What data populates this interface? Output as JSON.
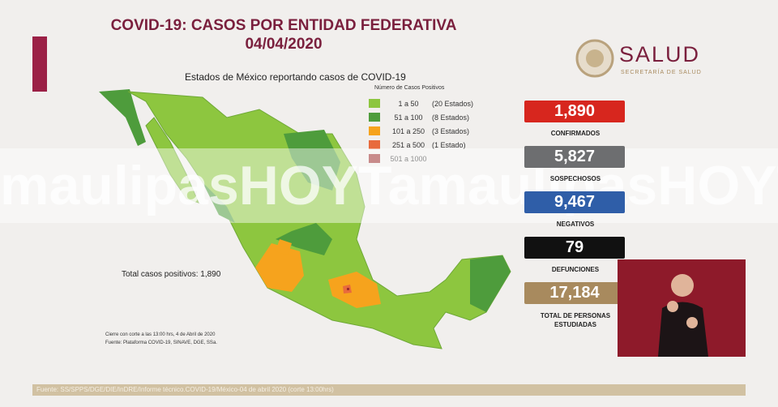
{
  "header": {
    "title": "COVID-19: CASOS POR ENTIDAD FEDERATIVA",
    "date": "04/04/2020"
  },
  "logo": {
    "name": "SALUD",
    "subtitle": "SECRETARÍA DE SALUD"
  },
  "map": {
    "title": "Estados de México reportando casos de COVID-19",
    "legend_title": "Número de Casos Positivos",
    "legend": [
      {
        "range": "1 a 50",
        "states": "(20 Estados)",
        "color": "#8dc63f"
      },
      {
        "range": "51 a 100",
        "states": "(8 Estados)",
        "color": "#4e9c3c"
      },
      {
        "range": "101 a 250",
        "states": "(3 Estados)",
        "color": "#f6a31d"
      },
      {
        "range": "251 a 500",
        "states": "(1 Estado)",
        "color": "#e86a3c"
      },
      {
        "range": "501 a 1000",
        "states": null,
        "color": "#9b2d2d"
      }
    ],
    "total": "Total casos positivos: 1,890",
    "notes": [
      "Cierre con corte a las 13:00 hrs, 4 de Abril de 2020",
      "Fuente: Plataforma COVID-19, SINAVE, DGE, SSa."
    ]
  },
  "stats": [
    {
      "value": "1,890",
      "label": "CONFIRMADOS",
      "color": "#d7261e"
    },
    {
      "value": "5,827",
      "label": "SOSPECHOSOS",
      "color": "#6d6e70"
    },
    {
      "value": "9,467",
      "label": "NEGATIVOS",
      "color": "#2f5ea8"
    },
    {
      "value": "79",
      "label": "DEFUNCIONES",
      "color": "#111111"
    },
    {
      "value": "17,184",
      "label": "TOTAL DE PERSONAS ESTUDIADAS",
      "color": "#a88a5e"
    }
  ],
  "watermark": "maulipasHOYTamaulipasHOYTama",
  "footer": "Fuente: SS/SPPS/DGE/DIE/InDRE/Informe técnico.COVID-19/México-04 de abril 2020 (corte 13:00hrs)"
}
